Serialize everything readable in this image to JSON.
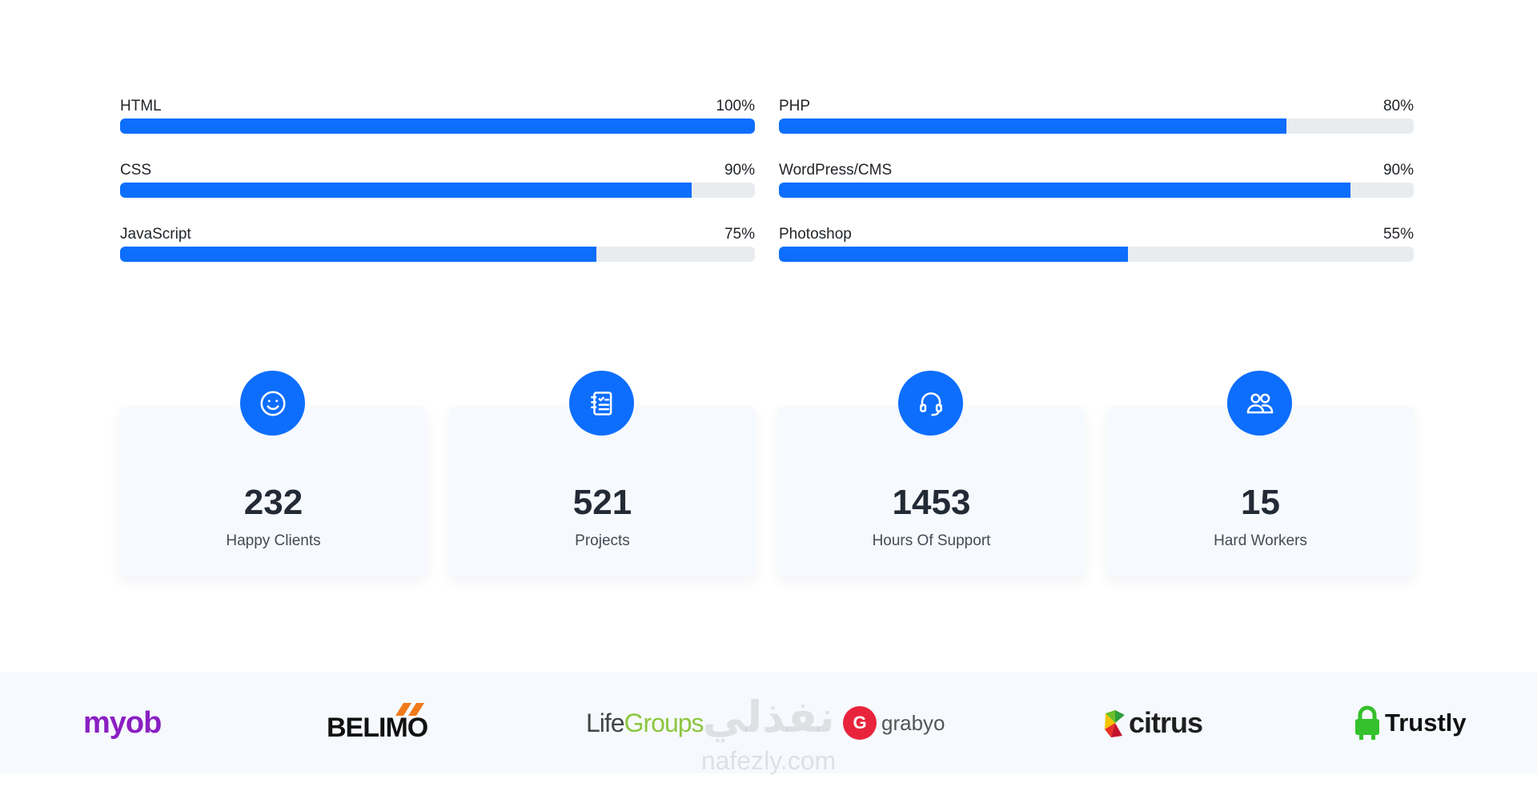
{
  "skills": {
    "left": [
      {
        "name": "HTML",
        "percent_label": "100%",
        "value": 100
      },
      {
        "name": "CSS",
        "percent_label": "90%",
        "value": 90
      },
      {
        "name": "JavaScript",
        "percent_label": "75%",
        "value": 75
      }
    ],
    "right": [
      {
        "name": "PHP",
        "percent_label": "80%",
        "value": 80
      },
      {
        "name": "WordPress/CMS",
        "percent_label": "90%",
        "value": 90
      },
      {
        "name": "Photoshop",
        "percent_label": "55%",
        "value": 55
      }
    ],
    "bar_color": "#0d6efd",
    "track_color": "#e9ecef"
  },
  "counters": [
    {
      "icon": "smile-icon",
      "number": "232",
      "label": "Happy Clients"
    },
    {
      "icon": "journal-list-icon",
      "number": "521",
      "label": "Projects"
    },
    {
      "icon": "headset-icon",
      "number": "1453",
      "label": "Hours Of Support"
    },
    {
      "icon": "people-icon",
      "number": "15",
      "label": "Hard Workers"
    }
  ],
  "clients": {
    "myob": "myob",
    "belimo": "BELIMO",
    "lifegroups_life": "Life",
    "lifegroups_groups": "Groups",
    "grabyo": "grabyo",
    "grabyo_mark": "G",
    "citrus": "citrus",
    "trustly": "Trustly"
  },
  "watermark": {
    "arabic": "نفذلي",
    "latin": "nafezly.com"
  },
  "accent_color": "#0d6efd"
}
